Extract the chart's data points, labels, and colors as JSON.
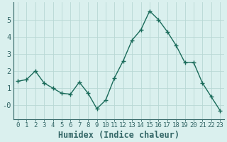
{
  "x": [
    0,
    1,
    2,
    3,
    4,
    5,
    6,
    7,
    8,
    9,
    10,
    11,
    12,
    13,
    14,
    15,
    16,
    17,
    18,
    19,
    20,
    21,
    22,
    23
  ],
  "y": [
    1.4,
    1.5,
    2.0,
    1.3,
    1.0,
    0.7,
    0.65,
    1.35,
    0.7,
    -0.2,
    0.3,
    1.6,
    2.6,
    3.8,
    4.4,
    5.5,
    5.0,
    4.3,
    3.5,
    2.5,
    2.5,
    1.3,
    0.5,
    -0.3
  ],
  "line_color": "#1a6b5a",
  "marker": "+",
  "markersize": 4,
  "linewidth": 1.0,
  "bg_color": "#daf0ee",
  "grid_color": "#b8d8d4",
  "xlabel": "Humidex (Indice chaleur)",
  "ylim": [
    -0.8,
    6.0
  ],
  "yticks": [
    0,
    1,
    2,
    3,
    4,
    5
  ],
  "ytick_labels": [
    "-0",
    "1",
    "2",
    "3",
    "4",
    "5"
  ],
  "xtick_fontsize": 6.5,
  "ytick_fontsize": 7.5,
  "xlabel_fontsize": 8.5,
  "spine_color": "#336666",
  "tick_color": "#336666"
}
